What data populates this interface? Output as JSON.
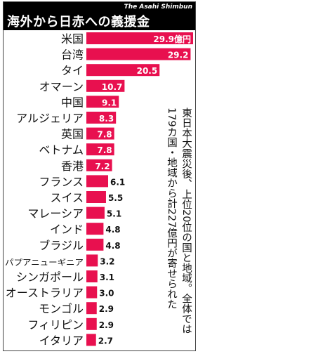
{
  "header": {
    "title": "海外から日赤への義援金",
    "credit": "The Asahi Shimbun"
  },
  "note": "東日本大震災後、上位20位の国と地域。全体では179カ国・地域から計227億円が寄せられた",
  "colors": {
    "bar": "#e8104f",
    "header": "#000000",
    "bar_label": "#ffffff",
    "outside_label": "#111111"
  },
  "chart_data": {
    "type": "bar",
    "orientation": "horizontal",
    "unit_label": "億円",
    "categories": [
      "米国",
      "台湾",
      "タイ",
      "オマーン",
      "中国",
      "アルジェリア",
      "英国",
      "ベトナム",
      "香港",
      "フランス",
      "スイス",
      "マレーシア",
      "インド",
      "ブラジル",
      "パプアニューギニア",
      "シンガポール",
      "オーストラリア",
      "モンゴル",
      "フィリピン",
      "イタリア"
    ],
    "values": [
      29.9,
      29.2,
      20.5,
      10.7,
      9.1,
      8.3,
      7.8,
      7.8,
      7.2,
      6.1,
      5.5,
      5.1,
      4.8,
      4.8,
      3.2,
      3.1,
      3.0,
      2.9,
      2.9,
      2.7
    ],
    "value_labels": [
      "29.9億円",
      "29.2",
      "20.5",
      "10.7",
      "9.1",
      "8.3",
      "7.8",
      "7.8",
      "7.2",
      "6.1",
      "5.5",
      "5.1",
      "4.8",
      "4.8",
      "3.2",
      "3.1",
      "3.0",
      "2.9",
      "2.9",
      "2.7"
    ],
    "xlim": [
      0,
      29.9
    ],
    "grid": false,
    "legend": "none"
  }
}
